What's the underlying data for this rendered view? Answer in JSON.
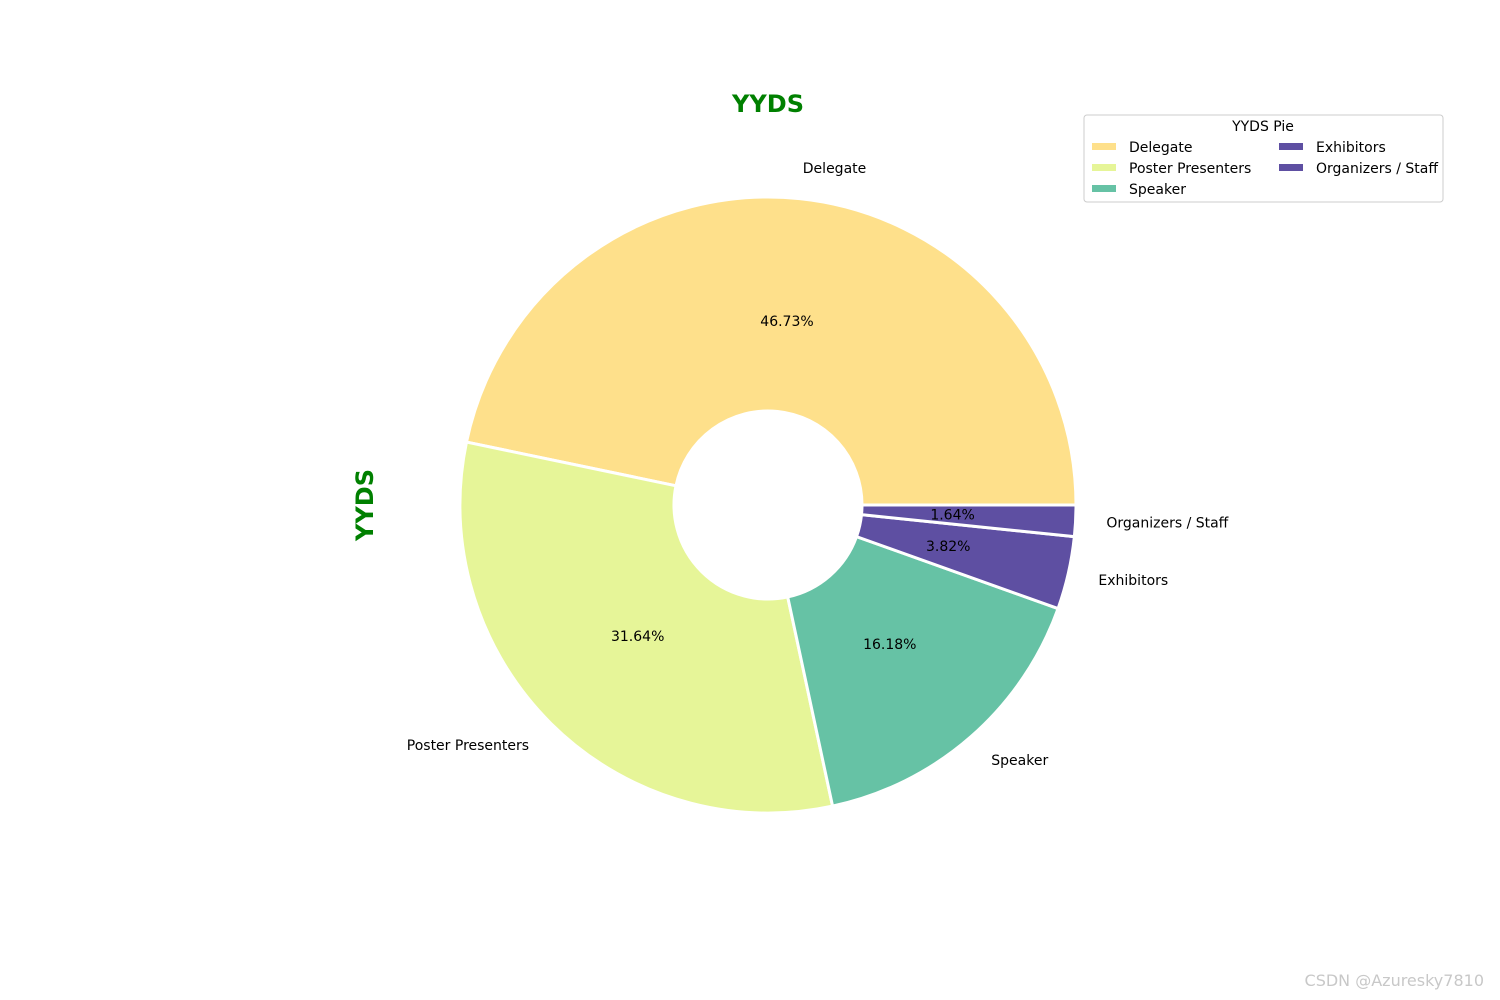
{
  "chart_data": {
    "type": "pie",
    "title": "YYDS",
    "ylabel": "YYDS",
    "label_color": "#008000",
    "donut": true,
    "slices": [
      {
        "label": "Delegate",
        "value": 46.73,
        "color": "#fee08b"
      },
      {
        "label": "Poster Presenters",
        "value": 31.64,
        "color": "#e6f598"
      },
      {
        "label": "Speaker",
        "value": 16.18,
        "color": "#66c2a5"
      },
      {
        "label": "Exhibitors",
        "value": 3.82,
        "color": "#5e4fa2"
      },
      {
        "label": "Organizers / Staff",
        "value": 1.64,
        "color": "#5e4fa2"
      }
    ],
    "percent_labels": [
      "46.73%",
      "31.64%",
      "16.18%",
      "3.82%",
      "1.64%"
    ],
    "start_angle_deg": 0,
    "direction": "counterclockwise",
    "legend": {
      "title": "YYDS Pie",
      "placement": "top-right",
      "columns": 2
    }
  },
  "watermark": "CSDN @Azuresky7810"
}
